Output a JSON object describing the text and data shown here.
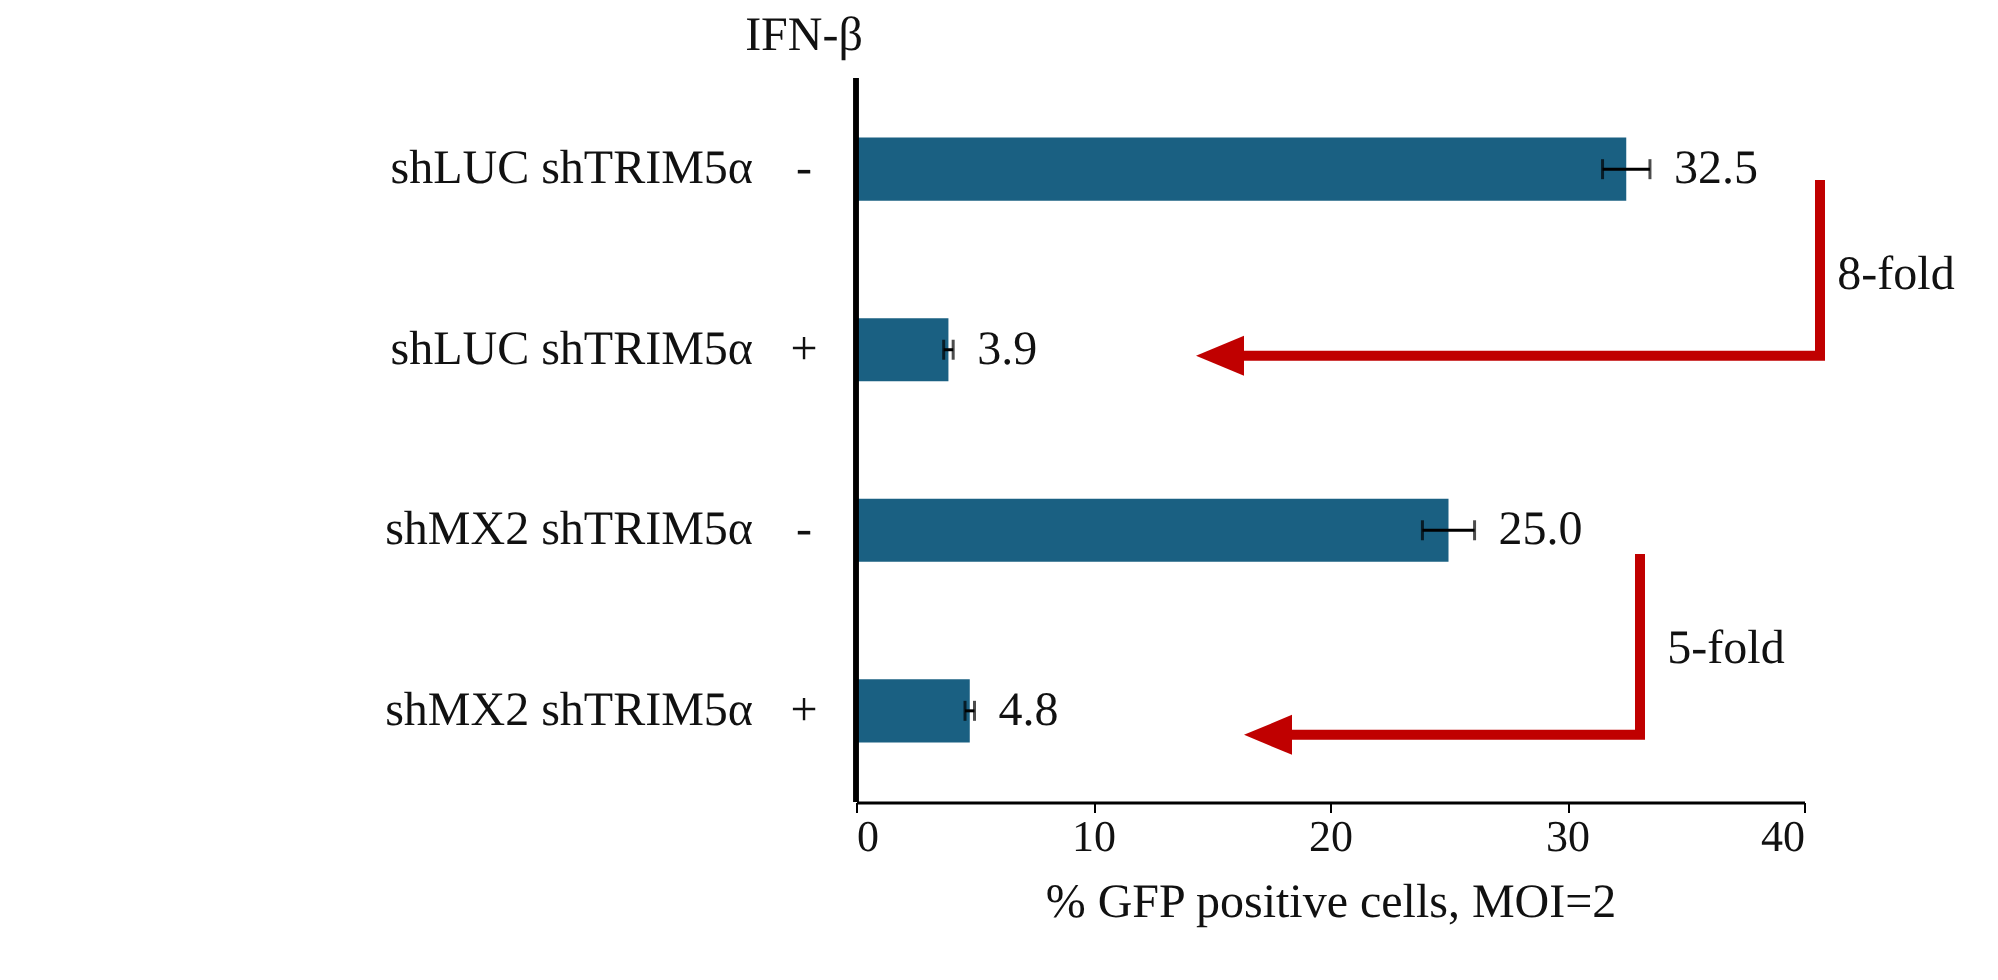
{
  "chart_data": {
    "type": "bar",
    "orientation": "horizontal",
    "categories": [
      "shLUC shTRIM5α",
      "shLUC shTRIM5α",
      "shMX2 shTRIM5α",
      "shMX2 shTRIM5α"
    ],
    "values": [
      32.5,
      3.9,
      25.0,
      4.8
    ],
    "errors": [
      1.0,
      0.2,
      1.1,
      0.2
    ],
    "value_labels": [
      "32.5",
      "3.9",
      "25.0",
      "4.8"
    ],
    "color": "#1a6082",
    "xlabel": "% GFP positive cells, MOI=2",
    "xlim": [
      0,
      40
    ],
    "xticks": [
      0,
      10,
      20,
      30,
      40
    ],
    "grid": false,
    "annotations": [
      "IFN-β",
      "-",
      "+",
      "-",
      "+",
      "8-fold",
      "5-fold"
    ]
  }
}
